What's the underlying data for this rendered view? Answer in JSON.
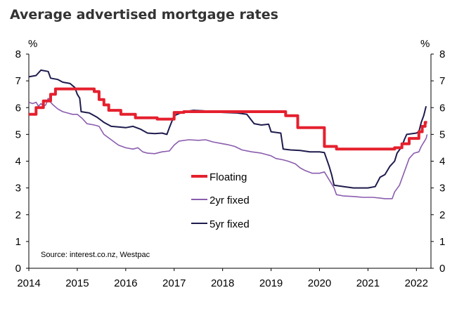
{
  "chart_data": {
    "type": "line",
    "title": "Average advertised mortgage rates",
    "left_unit": "%",
    "right_unit": "%",
    "ylim": [
      0,
      8
    ],
    "y_ticks": [
      "0",
      "1",
      "2",
      "3",
      "4",
      "5",
      "6",
      "7",
      "8"
    ],
    "xlim": [
      2014,
      2022.3
    ],
    "x_ticks": [
      "2014",
      "2015",
      "2016",
      "2017",
      "2018",
      "2019",
      "2020",
      "2021",
      "2022"
    ],
    "source": "Source: interest.co.nz, Westpac",
    "series": [
      {
        "name": "Floating",
        "color": "#e5202e",
        "points": [
          [
            2014.0,
            5.75
          ],
          [
            2014.15,
            5.75
          ],
          [
            2014.15,
            6.0
          ],
          [
            2014.3,
            6.0
          ],
          [
            2014.3,
            6.25
          ],
          [
            2014.45,
            6.25
          ],
          [
            2014.45,
            6.5
          ],
          [
            2014.55,
            6.5
          ],
          [
            2014.55,
            6.7
          ],
          [
            2015.35,
            6.7
          ],
          [
            2015.35,
            6.6
          ],
          [
            2015.45,
            6.6
          ],
          [
            2015.45,
            6.3
          ],
          [
            2015.55,
            6.3
          ],
          [
            2015.55,
            6.1
          ],
          [
            2015.65,
            6.1
          ],
          [
            2015.65,
            5.9
          ],
          [
            2015.9,
            5.9
          ],
          [
            2015.9,
            5.75
          ],
          [
            2016.2,
            5.75
          ],
          [
            2016.2,
            5.62
          ],
          [
            2016.65,
            5.62
          ],
          [
            2016.65,
            5.57
          ],
          [
            2017.0,
            5.57
          ],
          [
            2017.0,
            5.82
          ],
          [
            2017.2,
            5.82
          ],
          [
            2017.2,
            5.85
          ],
          [
            2018.0,
            5.85
          ],
          [
            2018.0,
            5.85
          ],
          [
            2019.3,
            5.85
          ],
          [
            2019.3,
            5.7
          ],
          [
            2019.55,
            5.7
          ],
          [
            2019.55,
            5.25
          ],
          [
            2020.1,
            5.25
          ],
          [
            2020.1,
            4.55
          ],
          [
            2020.35,
            4.55
          ],
          [
            2020.35,
            4.45
          ],
          [
            2021.3,
            4.45
          ],
          [
            2021.3,
            4.45
          ],
          [
            2021.55,
            4.45
          ],
          [
            2021.55,
            4.5
          ],
          [
            2021.7,
            4.5
          ],
          [
            2021.7,
            4.65
          ],
          [
            2021.85,
            4.65
          ],
          [
            2021.85,
            4.85
          ],
          [
            2022.05,
            4.85
          ],
          [
            2022.05,
            5.1
          ],
          [
            2022.12,
            5.1
          ],
          [
            2022.12,
            5.3
          ],
          [
            2022.18,
            5.3
          ],
          [
            2022.18,
            5.45
          ],
          [
            2022.22,
            5.45
          ]
        ]
      },
      {
        "name": "2yr fixed",
        "color": "#8a5cae",
        "points": [
          [
            2014.0,
            6.2
          ],
          [
            2014.08,
            6.15
          ],
          [
            2014.15,
            6.2
          ],
          [
            2014.2,
            6.05
          ],
          [
            2014.25,
            6.15
          ],
          [
            2014.3,
            6.05
          ],
          [
            2014.35,
            6.1
          ],
          [
            2014.4,
            6.35
          ],
          [
            2014.45,
            6.2
          ],
          [
            2014.5,
            6.1
          ],
          [
            2014.6,
            5.95
          ],
          [
            2014.7,
            5.85
          ],
          [
            2014.8,
            5.8
          ],
          [
            2014.9,
            5.75
          ],
          [
            2015.0,
            5.75
          ],
          [
            2015.1,
            5.6
          ],
          [
            2015.2,
            5.4
          ],
          [
            2015.35,
            5.35
          ],
          [
            2015.45,
            5.3
          ],
          [
            2015.55,
            5.0
          ],
          [
            2015.7,
            4.8
          ],
          [
            2015.85,
            4.6
          ],
          [
            2016.0,
            4.5
          ],
          [
            2016.15,
            4.45
          ],
          [
            2016.25,
            4.5
          ],
          [
            2016.35,
            4.35
          ],
          [
            2016.45,
            4.3
          ],
          [
            2016.6,
            4.28
          ],
          [
            2016.75,
            4.35
          ],
          [
            2016.9,
            4.38
          ],
          [
            2017.0,
            4.6
          ],
          [
            2017.1,
            4.75
          ],
          [
            2017.3,
            4.8
          ],
          [
            2017.5,
            4.78
          ],
          [
            2017.65,
            4.8
          ],
          [
            2017.8,
            4.72
          ],
          [
            2018.0,
            4.65
          ],
          [
            2018.1,
            4.62
          ],
          [
            2018.25,
            4.55
          ],
          [
            2018.4,
            4.42
          ],
          [
            2018.6,
            4.35
          ],
          [
            2018.8,
            4.3
          ],
          [
            2019.0,
            4.2
          ],
          [
            2019.1,
            4.1
          ],
          [
            2019.25,
            4.05
          ],
          [
            2019.35,
            4.0
          ],
          [
            2019.5,
            3.9
          ],
          [
            2019.6,
            3.75
          ],
          [
            2019.7,
            3.65
          ],
          [
            2019.85,
            3.55
          ],
          [
            2020.0,
            3.55
          ],
          [
            2020.1,
            3.6
          ],
          [
            2020.2,
            3.3
          ],
          [
            2020.3,
            3.0
          ],
          [
            2020.35,
            2.75
          ],
          [
            2020.5,
            2.7
          ],
          [
            2020.7,
            2.68
          ],
          [
            2020.9,
            2.65
          ],
          [
            2021.1,
            2.65
          ],
          [
            2021.25,
            2.62
          ],
          [
            2021.35,
            2.6
          ],
          [
            2021.5,
            2.6
          ],
          [
            2021.55,
            2.85
          ],
          [
            2021.65,
            3.1
          ],
          [
            2021.75,
            3.6
          ],
          [
            2021.85,
            4.1
          ],
          [
            2021.95,
            4.3
          ],
          [
            2022.05,
            4.35
          ],
          [
            2022.1,
            4.55
          ],
          [
            2022.15,
            4.7
          ],
          [
            2022.2,
            4.85
          ],
          [
            2022.22,
            5.0
          ]
        ]
      },
      {
        "name": "5yr fixed",
        "color": "#1e1b4d",
        "points": [
          [
            2014.0,
            7.15
          ],
          [
            2014.15,
            7.2
          ],
          [
            2014.25,
            7.4
          ],
          [
            2014.4,
            7.35
          ],
          [
            2014.45,
            7.1
          ],
          [
            2014.6,
            7.05
          ],
          [
            2014.7,
            6.95
          ],
          [
            2014.85,
            6.9
          ],
          [
            2014.95,
            6.75
          ],
          [
            2015.0,
            6.5
          ],
          [
            2015.05,
            6.35
          ],
          [
            2015.08,
            5.85
          ],
          [
            2015.25,
            5.8
          ],
          [
            2015.4,
            5.65
          ],
          [
            2015.55,
            5.45
          ],
          [
            2015.7,
            5.3
          ],
          [
            2015.85,
            5.28
          ],
          [
            2016.0,
            5.25
          ],
          [
            2016.15,
            5.3
          ],
          [
            2016.3,
            5.2
          ],
          [
            2016.45,
            5.05
          ],
          [
            2016.6,
            5.03
          ],
          [
            2016.75,
            5.05
          ],
          [
            2016.85,
            5.0
          ],
          [
            2016.9,
            5.25
          ],
          [
            2017.0,
            5.7
          ],
          [
            2017.2,
            5.85
          ],
          [
            2017.4,
            5.9
          ],
          [
            2017.6,
            5.88
          ],
          [
            2017.8,
            5.85
          ],
          [
            2018.0,
            5.82
          ],
          [
            2018.3,
            5.8
          ],
          [
            2018.5,
            5.75
          ],
          [
            2018.65,
            5.4
          ],
          [
            2018.8,
            5.35
          ],
          [
            2018.95,
            5.38
          ],
          [
            2019.0,
            5.1
          ],
          [
            2019.2,
            5.05
          ],
          [
            2019.25,
            4.45
          ],
          [
            2019.4,
            4.42
          ],
          [
            2019.6,
            4.4
          ],
          [
            2019.8,
            4.35
          ],
          [
            2020.0,
            4.35
          ],
          [
            2020.1,
            4.32
          ],
          [
            2020.2,
            3.8
          ],
          [
            2020.25,
            3.5
          ],
          [
            2020.3,
            3.1
          ],
          [
            2020.5,
            3.05
          ],
          [
            2020.7,
            3.0
          ],
          [
            2020.9,
            3.0
          ],
          [
            2021.0,
            3.0
          ],
          [
            2021.15,
            3.05
          ],
          [
            2021.25,
            3.4
          ],
          [
            2021.35,
            3.5
          ],
          [
            2021.45,
            3.8
          ],
          [
            2021.55,
            4.0
          ],
          [
            2021.6,
            4.3
          ],
          [
            2021.7,
            4.55
          ],
          [
            2021.75,
            4.8
          ],
          [
            2021.8,
            5.0
          ],
          [
            2022.0,
            5.05
          ],
          [
            2022.05,
            5.1
          ],
          [
            2022.1,
            5.45
          ],
          [
            2022.15,
            5.7
          ],
          [
            2022.2,
            6.05
          ]
        ]
      }
    ]
  }
}
